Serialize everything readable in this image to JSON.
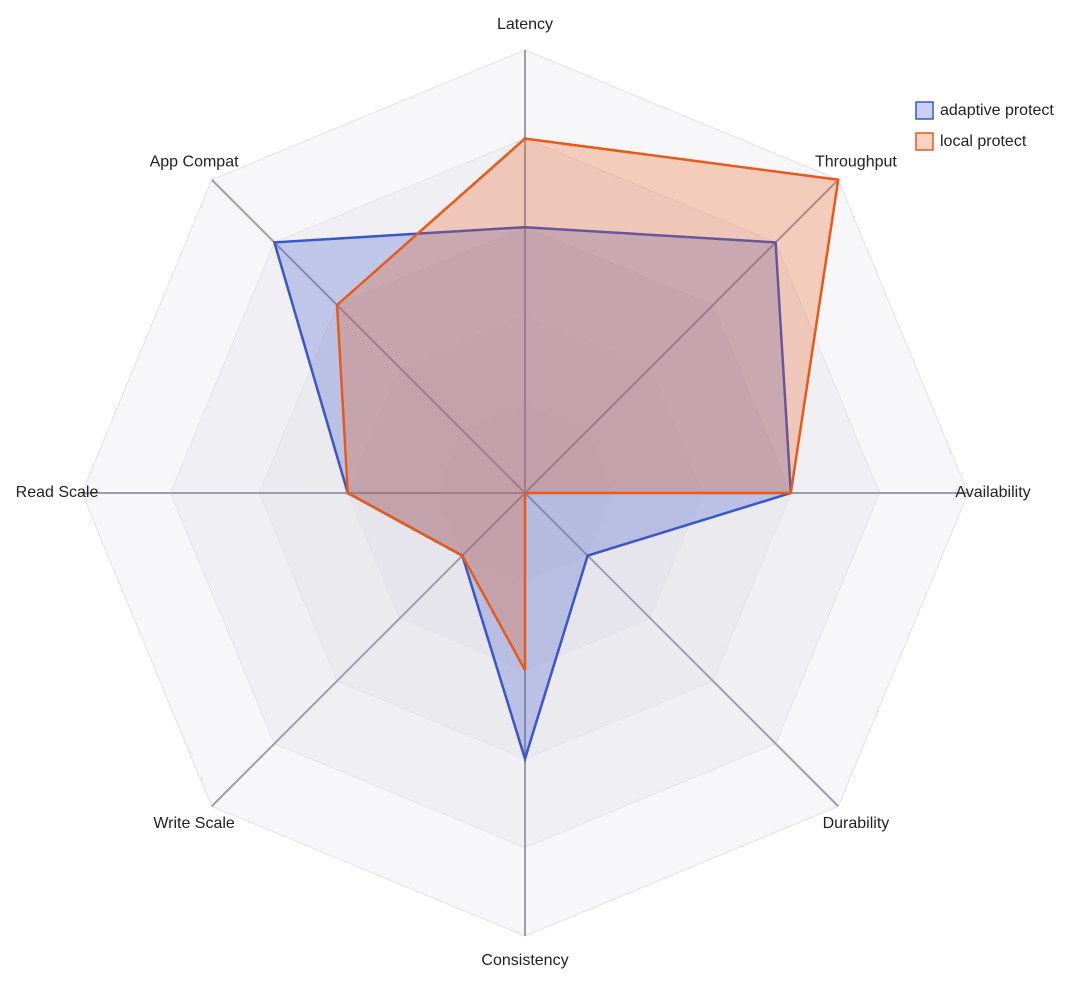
{
  "chart_data": {
    "type": "radar",
    "categories": [
      "Latency",
      "Throughput",
      "Availability",
      "Durability",
      "Consistency",
      "Write Scale",
      "Read Scale",
      "App Compat"
    ],
    "rlim": [
      0,
      5
    ],
    "rticks": [
      1,
      2,
      3,
      4,
      5
    ],
    "series": [
      {
        "name": "adaptive protect",
        "color": "#3a56c8",
        "values": [
          3,
          4,
          3,
          1,
          3,
          1,
          2,
          4
        ]
      },
      {
        "name": "local protect",
        "color": "#e8591a",
        "values": [
          4,
          5,
          3,
          0,
          2,
          1,
          2,
          3
        ]
      }
    ],
    "legend": "top-right"
  }
}
